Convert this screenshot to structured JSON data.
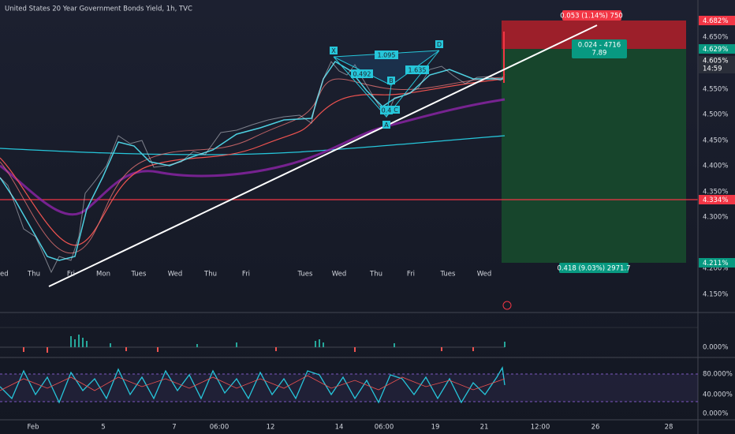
{
  "header": {
    "title": "United States 20 Year Government Bonds Yield, 1h, TVC"
  },
  "price_axis": [
    "4.650%",
    "4.550%",
    "4.500%",
    "4.450%",
    "4.400%",
    "4.350%",
    "4.300%",
    "4.200%",
    "4.150%"
  ],
  "badges": {
    "stop": "4.682%",
    "entry": "4.629%",
    "last": "4.605%",
    "countdown": "14:59",
    "level": "4.334%",
    "target": "4.211%"
  },
  "position": {
    "risk_label": "0.053 (1.14%) 750",
    "entry_label": "0.024 - 4716",
    "ratio": "7.89",
    "reward_label": "0.418 (9.03%) 2971.7"
  },
  "pattern": {
    "points": [
      "X",
      "A",
      "B",
      "C",
      "D"
    ],
    "ratios": [
      "1.095",
      "0.492",
      "1.635",
      "0.4"
    ]
  },
  "day_labels": [
    "ed",
    "Thu",
    "Fri",
    "Mon",
    "Tues",
    "Wed",
    "Thu",
    "Fri",
    "Tues",
    "Wed",
    "Thu",
    "Fri",
    "Tues",
    "Wed"
  ],
  "time_axis": [
    "Feb",
    "5",
    "7",
    "06:00",
    "12",
    "14",
    "06:00",
    "19",
    "21",
    "12:00",
    "26",
    "28"
  ],
  "indicator_axis": [
    "0.000%",
    "80.000%",
    "40.000%",
    "0.000%"
  ]
}
